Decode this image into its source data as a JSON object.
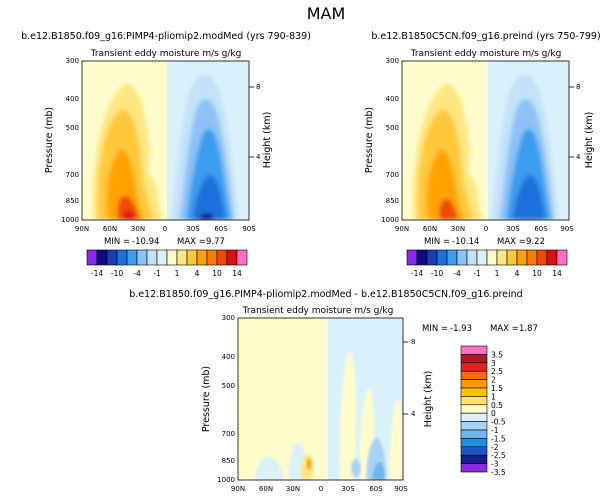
{
  "figure": {
    "title": "MAM",
    "variable": "Transient eddy moisture m/s g/kg",
    "left_axis_label": "Pressure (mb)",
    "right_axis_label": "Height (km)",
    "stat_min_label": "MIN =",
    "stat_max_label": "MAX ="
  },
  "chart_data": [
    {
      "id": "panel-1",
      "type": "contour",
      "title": "b.e12.B1850.f09_g16.PIMP4-pliomip2.modMed (yrs 790-839)",
      "subtitle": "Transient eddy moisture m/s g/kg",
      "min": "-10.94",
      "max": "9.77",
      "x_ticks": [
        "90N",
        "60N",
        "30N",
        "0",
        "30S",
        "60S",
        "90S"
      ],
      "y_ticks": [
        "300",
        "400",
        "500",
        "700",
        "850",
        "1000"
      ],
      "y_values": [
        300,
        400,
        500,
        700,
        850,
        1000
      ],
      "height_ticks": [
        "8",
        "4"
      ],
      "height_values": [
        8,
        4
      ],
      "xlabel": "",
      "ylabel": "Pressure (mb)",
      "ylabel_right": "Height (km)",
      "colorbar_labels": [
        "-14",
        "-10",
        "-4",
        "-1",
        "1",
        "4",
        "10",
        "14"
      ]
    },
    {
      "id": "panel-2",
      "type": "contour",
      "title": "b.e12.B1850C5CN.f09_g16.preind (yrs 750-799)",
      "subtitle": "Transient eddy moisture m/s g/kg",
      "min": "-10.14",
      "max": "9.22",
      "x_ticks": [
        "90N",
        "60N",
        "30N",
        "0",
        "30S",
        "60S",
        "90S"
      ],
      "y_ticks": [
        "300",
        "400",
        "500",
        "700",
        "850",
        "1000"
      ],
      "y_values": [
        300,
        400,
        500,
        700,
        850,
        1000
      ],
      "height_ticks": [
        "8",
        "4"
      ],
      "height_values": [
        8,
        4
      ],
      "xlabel": "",
      "ylabel": "Pressure (mb)",
      "ylabel_right": "Height (km)",
      "colorbar_labels": [
        "-14",
        "-10",
        "-4",
        "-1",
        "1",
        "4",
        "10",
        "14"
      ]
    },
    {
      "id": "panel-diff",
      "type": "contour",
      "title": "b.e12.B1850.f09_g16.PIMP4-pliomip2.modMed - b.e12.B1850C5CN.f09_g16.preind",
      "subtitle": "Transient eddy moisture m/s g/kg",
      "min": "-1.93",
      "max": "1.87",
      "x_ticks": [
        "90N",
        "60N",
        "30N",
        "0",
        "30S",
        "60S",
        "90S"
      ],
      "y_ticks": [
        "300",
        "400",
        "500",
        "700",
        "850",
        "1000"
      ],
      "y_values": [
        300,
        400,
        500,
        700,
        850,
        1000
      ],
      "height_ticks": [
        "8",
        "4"
      ],
      "height_values": [
        8,
        4
      ],
      "xlabel": "",
      "ylabel": "Pressure (mb)",
      "ylabel_right": "Height (km)",
      "colorbar_labels": [
        "3.5",
        "3",
        "2.5",
        "2",
        "1.5",
        "1",
        "0.5",
        "0",
        "-0.5",
        "-1",
        "-1.5",
        "-2",
        "-2.5",
        "-3",
        "-3.5"
      ]
    }
  ],
  "colors": {
    "hbar": [
      "#8a2be2",
      "#0b0b8a",
      "#1a3fb0",
      "#1e6fdc",
      "#3b9cf0",
      "#8cc2f5",
      "#c4e1f8",
      "#d9f1fb",
      "#fffccc",
      "#ffe680",
      "#ffc83a",
      "#ffa200",
      "#ff7a00",
      "#f04a00",
      "#d8150f",
      "#ff6ec7"
    ],
    "vbar": [
      "#ff6ec7",
      "#b2182b",
      "#e52222",
      "#f36a08",
      "#ff9a00",
      "#ffc107",
      "#ffe066",
      "#fffccc",
      "#d9f1fb",
      "#a8d3f4",
      "#6fb5ef",
      "#1c8fe6",
      "#1f56cc",
      "#131e8f",
      "#8a2be2"
    ]
  }
}
